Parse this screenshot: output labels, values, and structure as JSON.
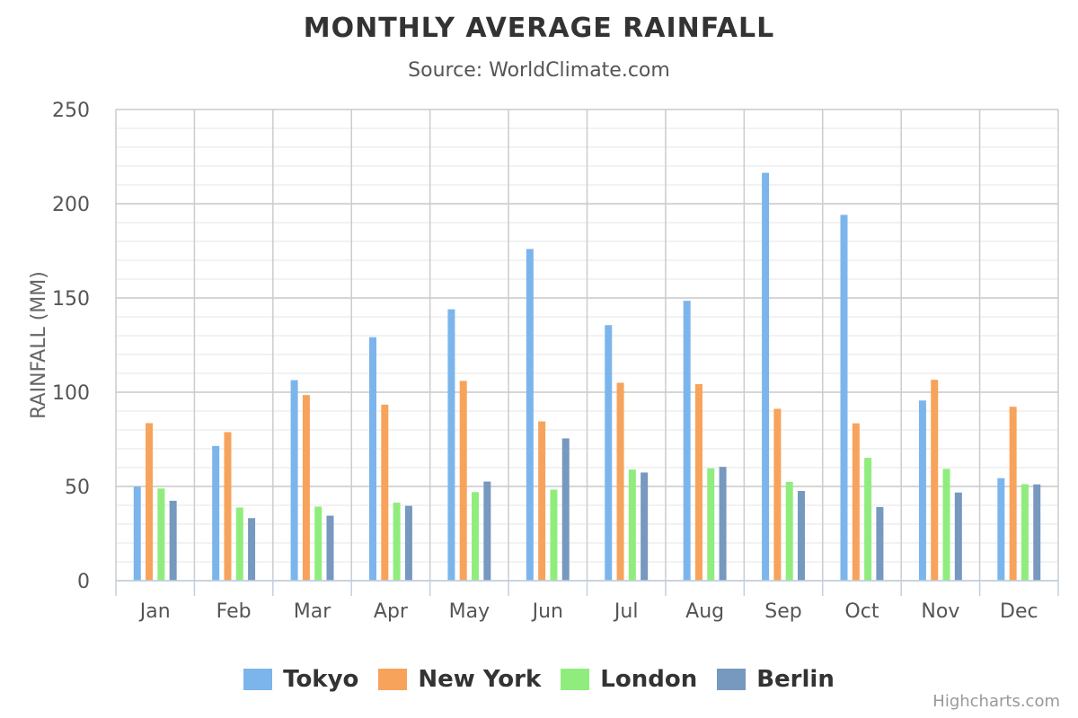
{
  "chart_data": {
    "type": "bar",
    "title": "MONTHLY AVERAGE RAINFALL",
    "subtitle": "Source: WorldClimate.com",
    "ylabel": "RAINFALL (MM)",
    "xlabel": "",
    "ylim": [
      0,
      250
    ],
    "yticks": [
      "0",
      "50",
      "100",
      "150",
      "200",
      "250"
    ],
    "grid": true,
    "legend_position": "bottom-center",
    "categories": [
      "Jan",
      "Feb",
      "Mar",
      "Apr",
      "May",
      "Jun",
      "Jul",
      "Aug",
      "Sep",
      "Oct",
      "Nov",
      "Dec"
    ],
    "series": [
      {
        "name": "Tokyo",
        "color": "#7cb5ec",
        "values": [
          49.9,
          71.5,
          106.4,
          129.2,
          144.0,
          176.0,
          135.6,
          148.5,
          216.4,
          194.1,
          95.6,
          54.4
        ]
      },
      {
        "name": "New York",
        "color": "#f7a35c",
        "values": [
          83.6,
          78.8,
          98.5,
          93.4,
          106.0,
          84.5,
          105.0,
          104.3,
          91.2,
          83.5,
          106.6,
          92.3
        ]
      },
      {
        "name": "London",
        "color": "#90ed7d",
        "values": [
          48.9,
          38.8,
          39.3,
          41.4,
          47.0,
          48.3,
          59.0,
          59.6,
          52.4,
          65.2,
          59.3,
          51.2
        ]
      },
      {
        "name": "Berlin",
        "color": "#7798bf",
        "values": [
          42.4,
          33.2,
          34.5,
          39.7,
          52.6,
          75.5,
          57.4,
          60.4,
          47.6,
          39.1,
          46.8,
          51.1
        ]
      }
    ]
  },
  "credit": "Highcharts.com"
}
